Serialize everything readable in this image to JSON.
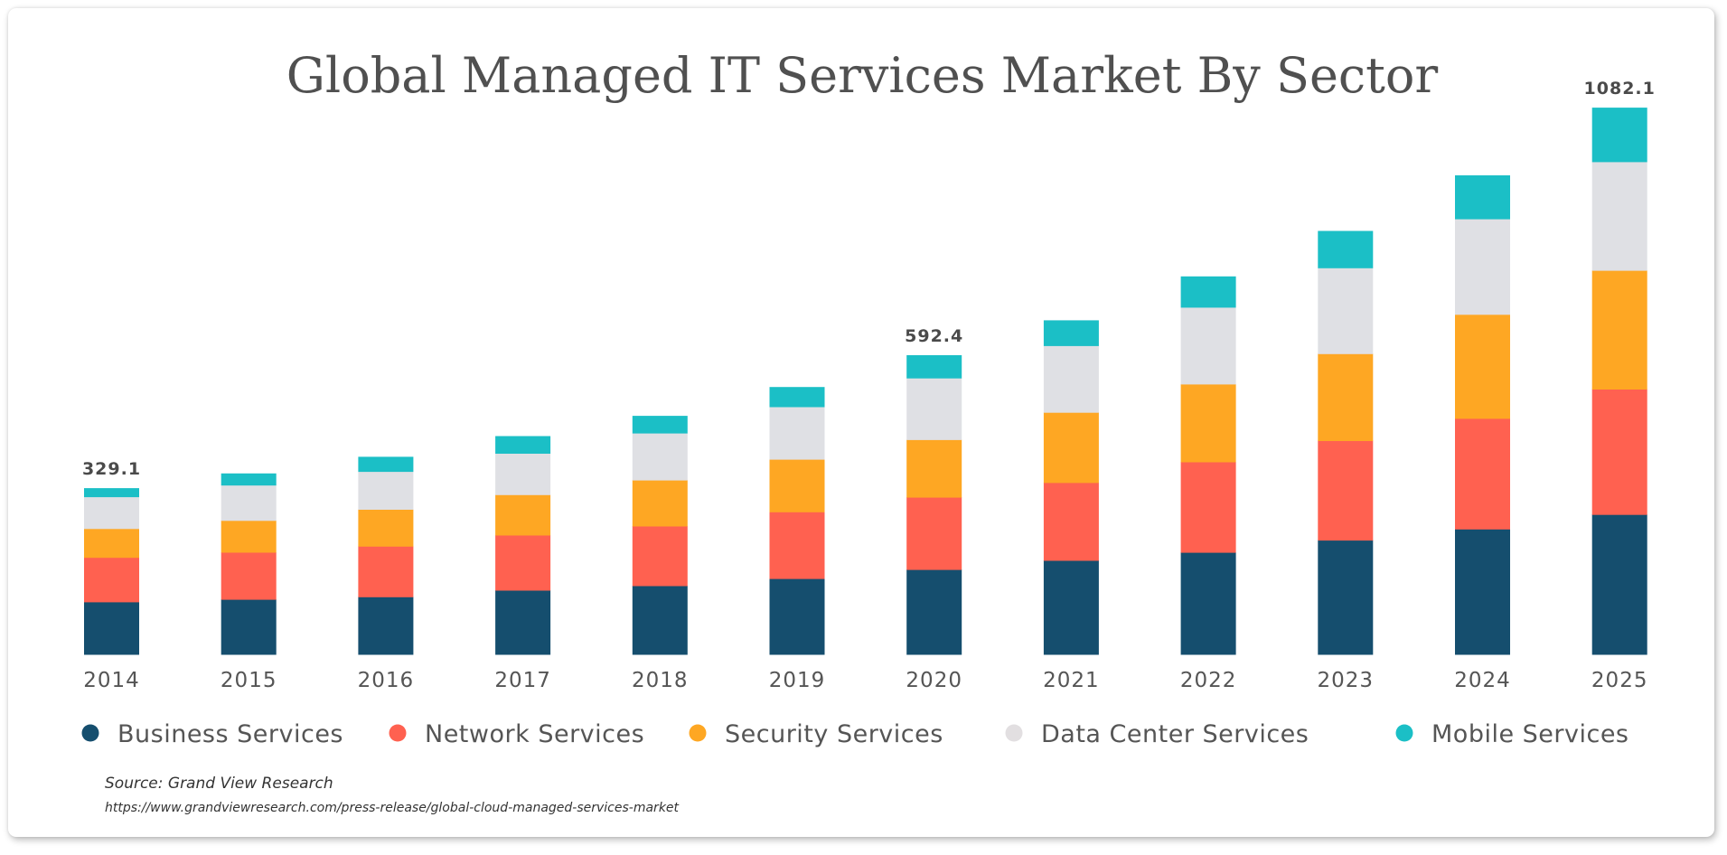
{
  "chart_data": {
    "type": "bar",
    "stacked": true,
    "title": "Global Managed IT Services Market By Sector",
    "xlabel": "",
    "ylabel": "",
    "ylim": [
      0,
      1100
    ],
    "grid": false,
    "legend_position": "bottom",
    "categories": [
      "2014",
      "2015",
      "2016",
      "2017",
      "2018",
      "2019",
      "2020",
      "2021",
      "2022",
      "2023",
      "2024",
      "2025"
    ],
    "series": [
      {
        "name": "Business Services",
        "color": "#154e6e",
        "values": [
          104,
          109,
          114,
          127,
          136,
          150,
          168,
          186,
          202,
          226,
          248,
          277
        ]
      },
      {
        "name": "Network Services",
        "color": "#ff6150",
        "values": [
          88,
          93,
          100,
          109,
          118,
          132,
          143,
          154,
          179,
          197,
          219,
          248
        ]
      },
      {
        "name": "Security Services",
        "color": "#fea723",
        "values": [
          57,
          63,
          73,
          80,
          91,
          104,
          114,
          139,
          154,
          172,
          206,
          235
        ]
      },
      {
        "name": "Data Center Services",
        "color": "#dfe0e4",
        "values": [
          63,
          70,
          75,
          82,
          93,
          104,
          122,
          132,
          152,
          170,
          189,
          215
        ]
      },
      {
        "name": "Mobile Services",
        "color": "#1bbfc6",
        "values": [
          17,
          23,
          29,
          34,
          34,
          39,
          45,
          50,
          61,
          73,
          86,
          107
        ]
      }
    ],
    "annotations": [
      {
        "category": "2014",
        "text": "329.1"
      },
      {
        "category": "2020",
        "text": "592.4"
      },
      {
        "category": "2025",
        "text": "1082.1"
      }
    ]
  },
  "legend_dot_colors": {
    "Data Center Services": "#e2dfe1"
  },
  "source": {
    "label": "Source: Grand View Research",
    "url": "https://www.grandviewresearch.com/press-release/global-cloud-managed-services-market"
  }
}
